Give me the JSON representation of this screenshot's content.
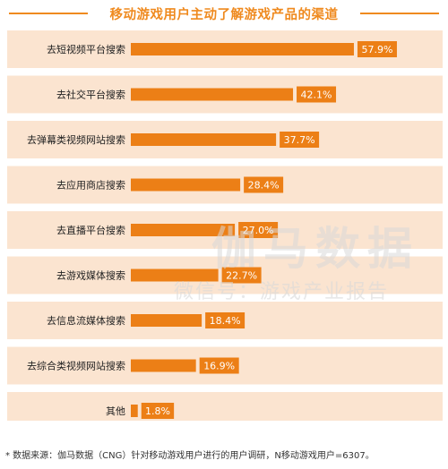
{
  "title": "移动游戏用户主动了解游戏产品的渠道",
  "source_note": "* 数据来源：伽马数据（CNG）针对移动游戏用户进行的用户调研，N移动游戏用户=6307。",
  "watermark": {
    "line1": "伽马数据",
    "line2": "微信号：游戏产业报告"
  },
  "colors": {
    "bar": "#ec7f16",
    "band": "#fbe4d0",
    "label_bg": "#ec7f16",
    "title": "#ef8a1f"
  },
  "chart_data": {
    "type": "bar",
    "orientation": "horizontal",
    "title": "移动游戏用户主动了解游戏产品的渠道",
    "categories": [
      "去短视频平台搜索",
      "去社交平台搜索",
      "去弹幕类视频网站搜索",
      "去应用商店搜索",
      "去直播平台搜索",
      "去游戏媒体搜索",
      "去信息流媒体搜索",
      "去综合类视频网站搜索",
      "其他"
    ],
    "values": [
      57.9,
      42.1,
      37.7,
      28.4,
      27.0,
      22.7,
      18.4,
      16.9,
      1.8
    ],
    "value_labels": [
      "57.9%",
      "42.1%",
      "37.7%",
      "28.4%",
      "27.0%",
      "22.7%",
      "18.4%",
      "16.9%",
      "1.8%"
    ],
    "unit": "%",
    "xlim": [
      0,
      100
    ],
    "grid": false,
    "legend": "none"
  }
}
